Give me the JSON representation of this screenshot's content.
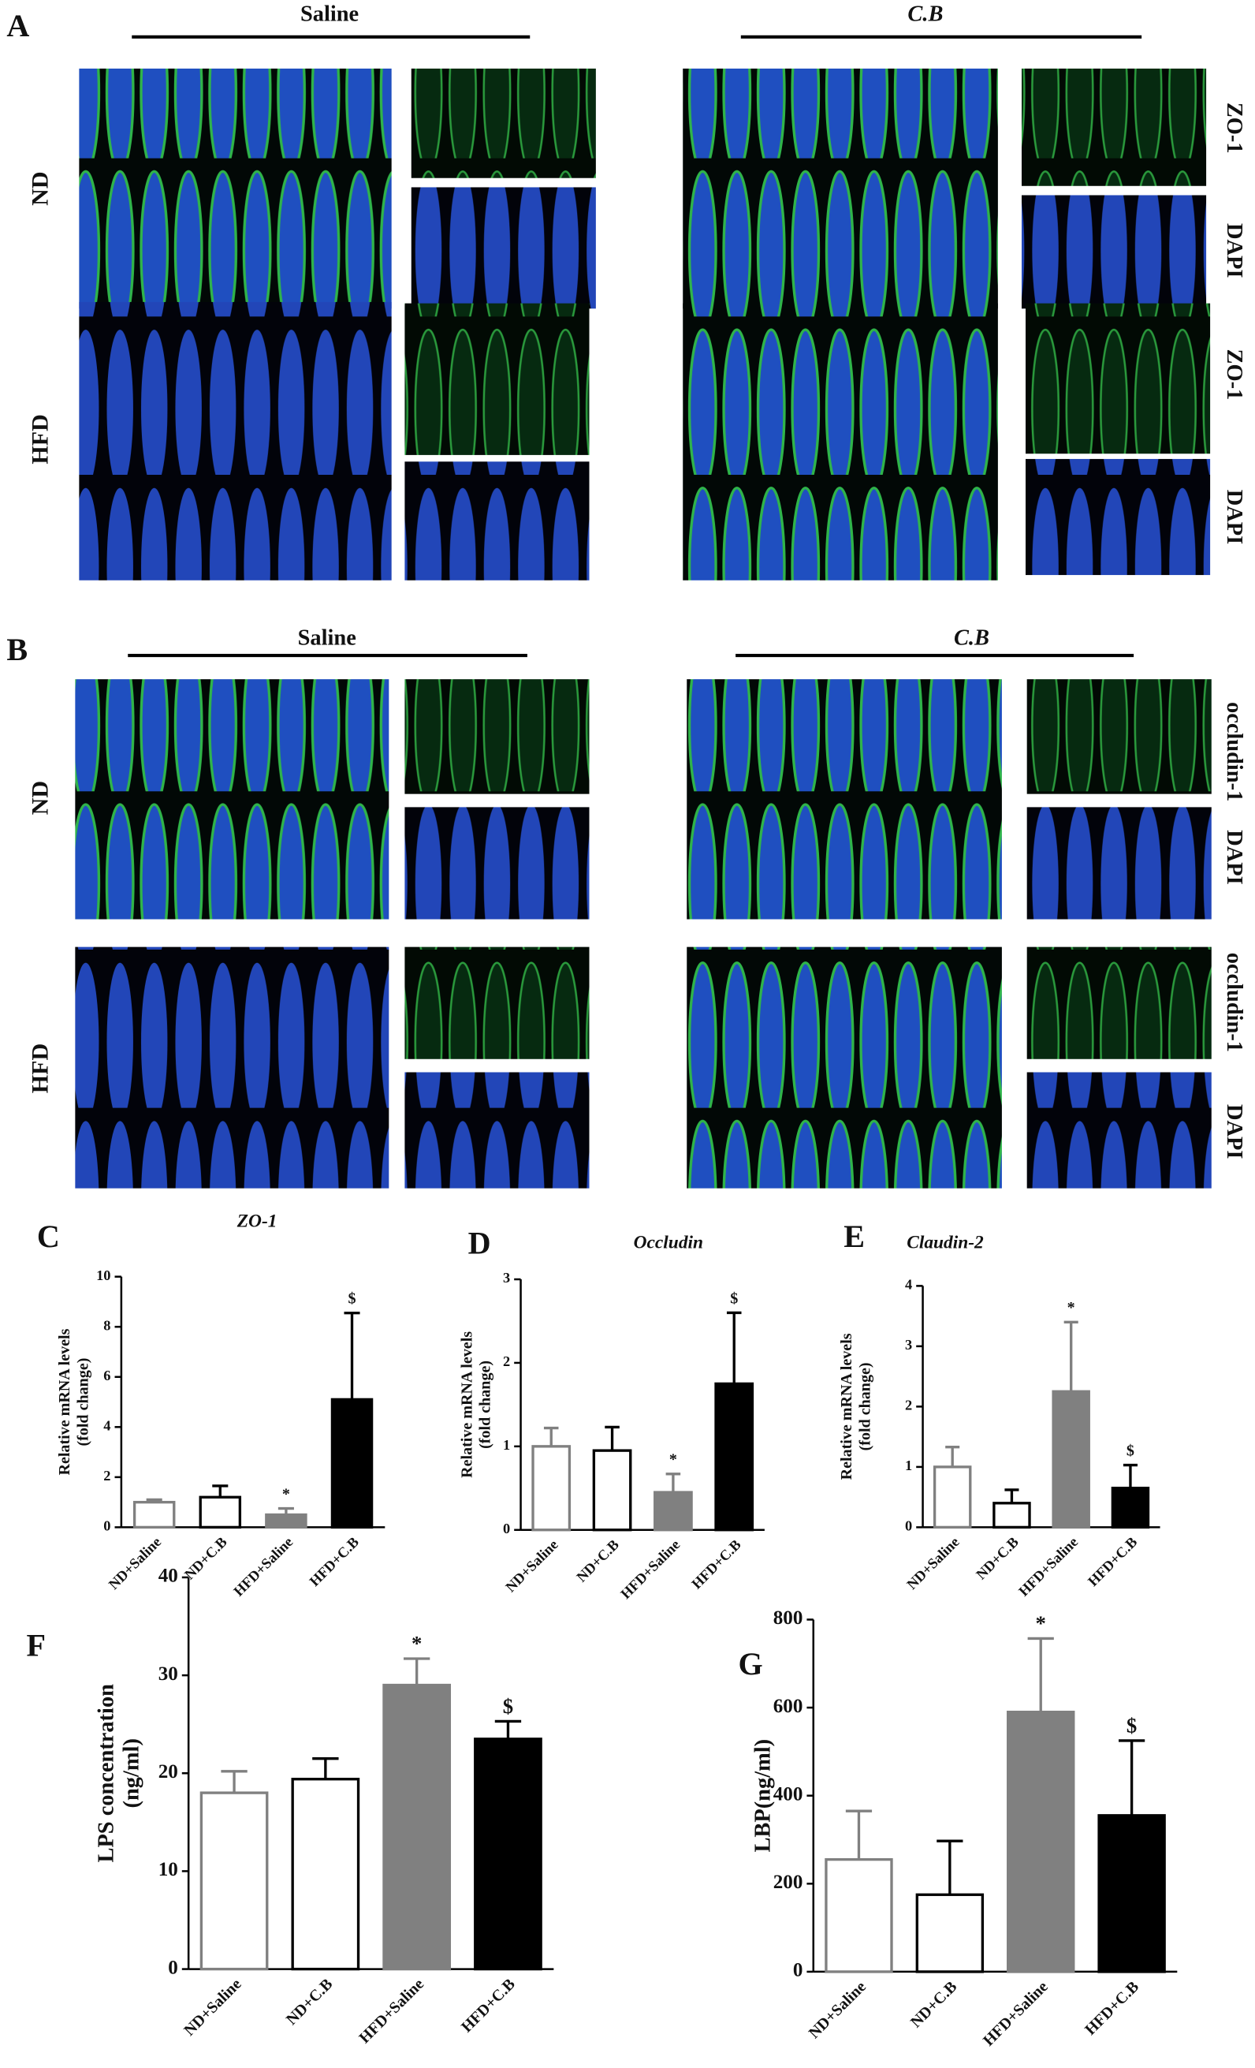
{
  "figure": {
    "panels": [
      "A",
      "B"
    ],
    "groups": [
      "Saline",
      "C.B"
    ],
    "diets": [
      "ND",
      "HFD"
    ],
    "stains_a": [
      "ZO-1",
      "DAPI"
    ],
    "stains_b": [
      "occludin-1",
      "DAPI"
    ]
  },
  "chart_data": [
    {
      "type": "bar",
      "panel": "C",
      "title": "ZO-1",
      "y_label": [
        "Relative mRNA levels",
        "(fold change)"
      ],
      "categories": [
        "ND+Saline",
        "ND+C.B",
        "HFD+Saline",
        "HFD+C.B"
      ],
      "values": [
        1.0,
        1.2,
        0.5,
        5.1
      ],
      "errors": [
        0.1,
        0.45,
        0.25,
        3.45
      ],
      "markers": [
        null,
        null,
        "*",
        "$"
      ],
      "colors": [
        "#ffffff",
        "#ffffff",
        "#808080",
        "#000000"
      ],
      "edge_colors": [
        "#808080",
        "#000000",
        "#808080",
        "#000000"
      ],
      "ylim": [
        0,
        10
      ],
      "yticks": [
        0,
        2,
        4,
        6,
        8,
        10
      ]
    },
    {
      "type": "bar",
      "panel": "D",
      "title": "Occludin",
      "y_label": [
        "Relative mRNA levels",
        "(fold change)"
      ],
      "categories": [
        "ND+Saline",
        "ND+C.B",
        "HFD+Saline",
        "HFD+C.B"
      ],
      "values": [
        1.0,
        0.95,
        0.45,
        1.75
      ],
      "errors": [
        0.22,
        0.28,
        0.22,
        0.85
      ],
      "markers": [
        null,
        null,
        "*",
        "$"
      ],
      "colors": [
        "#ffffff",
        "#ffffff",
        "#808080",
        "#000000"
      ],
      "edge_colors": [
        "#808080",
        "#000000",
        "#808080",
        "#000000"
      ],
      "ylim": [
        0,
        3
      ],
      "yticks": [
        0,
        1,
        2,
        3
      ]
    },
    {
      "type": "bar",
      "panel": "E",
      "title": "Claudin-2",
      "y_label": [
        "Relative mRNA levels",
        "(fold change)"
      ],
      "categories": [
        "ND+Saline",
        "ND+C.B",
        "HFD+Saline",
        "HFD+C.B"
      ],
      "values": [
        1.0,
        0.4,
        2.25,
        0.65
      ],
      "errors": [
        0.33,
        0.22,
        1.15,
        0.38
      ],
      "markers": [
        null,
        null,
        "*",
        "$"
      ],
      "colors": [
        "#ffffff",
        "#ffffff",
        "#808080",
        "#000000"
      ],
      "edge_colors": [
        "#808080",
        "#000000",
        "#808080",
        "#000000"
      ],
      "ylim": [
        0,
        4
      ],
      "yticks": [
        0,
        1,
        2,
        3,
        4
      ]
    },
    {
      "type": "bar",
      "panel": "F",
      "y_label": [
        "LPS concentration",
        "(ng/ml)"
      ],
      "categories": [
        "ND+Saline",
        "ND+C.B",
        "HFD+Saline",
        "HFD+C.B"
      ],
      "values": [
        18,
        19.4,
        29,
        23.5
      ],
      "errors": [
        2.2,
        2.1,
        2.7,
        1.8
      ],
      "markers": [
        null,
        null,
        "*",
        "$"
      ],
      "colors": [
        "#ffffff",
        "#ffffff",
        "#808080",
        "#000000"
      ],
      "edge_colors": [
        "#808080",
        "#000000",
        "#808080",
        "#000000"
      ],
      "ylim": [
        0,
        40
      ],
      "yticks": [
        0,
        10,
        20,
        30,
        40
      ]
    },
    {
      "type": "bar",
      "panel": "G",
      "y_label": [
        "LBP(ng/ml)"
      ],
      "categories": [
        "ND+Saline",
        "ND+C.B",
        "HFD+Saline",
        "HFD+C.B"
      ],
      "values": [
        255,
        175,
        590,
        355
      ],
      "errors": [
        110,
        122,
        167,
        170
      ],
      "markers": [
        null,
        null,
        "*",
        "$"
      ],
      "colors": [
        "#ffffff",
        "#ffffff",
        "#808080",
        "#000000"
      ],
      "edge_colors": [
        "#808080",
        "#000000",
        "#808080",
        "#000000"
      ],
      "ylim": [
        0,
        800
      ],
      "yticks": [
        0,
        200,
        400,
        600,
        800
      ]
    }
  ]
}
